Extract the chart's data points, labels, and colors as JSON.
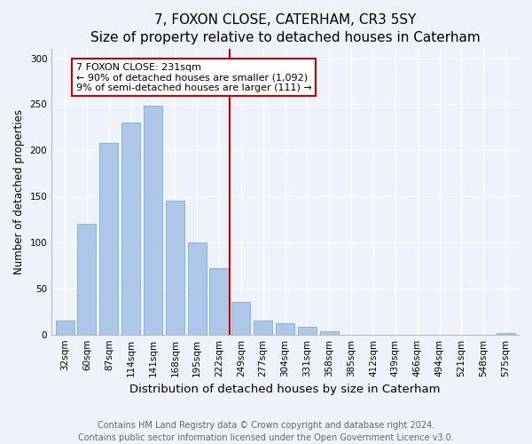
{
  "title": "7, FOXON CLOSE, CATERHAM, CR3 5SY",
  "subtitle": "Size of property relative to detached houses in Caterham",
  "xlabel": "Distribution of detached houses by size in Caterham",
  "ylabel": "Number of detached properties",
  "categories": [
    "32sqm",
    "60sqm",
    "87sqm",
    "114sqm",
    "141sqm",
    "168sqm",
    "195sqm",
    "222sqm",
    "249sqm",
    "277sqm",
    "304sqm",
    "331sqm",
    "358sqm",
    "385sqm",
    "412sqm",
    "439sqm",
    "466sqm",
    "494sqm",
    "521sqm",
    "548sqm",
    "575sqm"
  ],
  "values": [
    15,
    120,
    208,
    230,
    248,
    145,
    100,
    72,
    35,
    15,
    12,
    8,
    4,
    0,
    0,
    0,
    0,
    0,
    0,
    0,
    2
  ],
  "bar_color": "#aec6e8",
  "bar_edge_color": "#7aaed4",
  "vline_color": "#cc0000",
  "annotation_text": "7 FOXON CLOSE: 231sqm\n← 90% of detached houses are smaller (1,092)\n9% of semi-detached houses are larger (111) →",
  "annotation_box_color": "#ffffff",
  "annotation_box_edge": "#cc0000",
  "footnote": "Contains HM Land Registry data © Crown copyright and database right 2024.\nContains public sector information licensed under the Open Government Licence v3.0.",
  "ylim": [
    0,
    310
  ],
  "background_color": "#eef2fa",
  "grid_color": "#ffffff",
  "title_fontsize": 11,
  "subtitle_fontsize": 10,
  "xlabel_fontsize": 9.5,
  "ylabel_fontsize": 8.5,
  "tick_fontsize": 7.5,
  "footnote_fontsize": 7
}
